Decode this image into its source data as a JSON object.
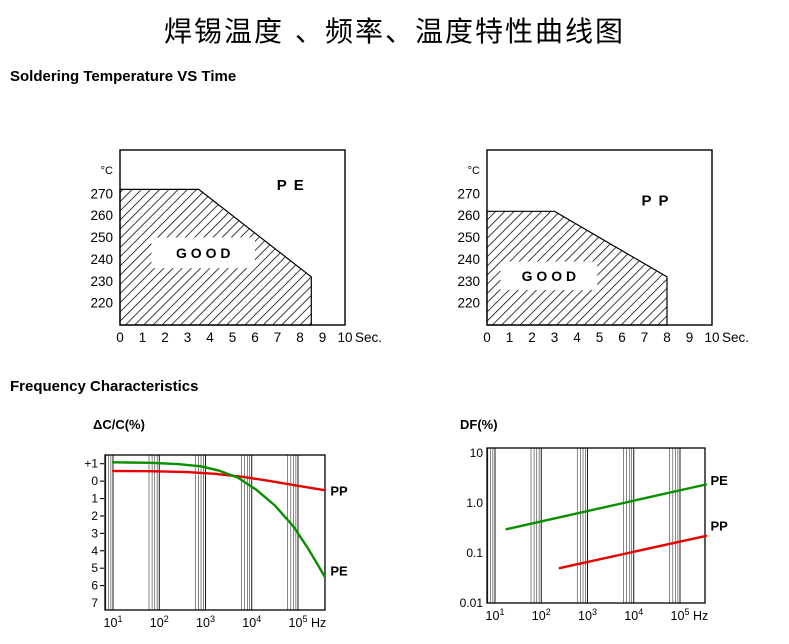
{
  "page": {
    "title": "焊锡温度 、频率、温度特性曲线图",
    "sections": {
      "soldering": "Soldering Temperature VS Time",
      "frequency": "Frequency Characteristics"
    }
  },
  "colors": {
    "pe_green": "#089000",
    "pp_red": "#e60000",
    "axis_black": "#000000"
  },
  "chart_data": [
    {
      "id": "chart-solder-pe",
      "type": "area",
      "series_label": "P E",
      "good_label": "G O O D",
      "y_unit": "°C",
      "x_unit": "Sec.",
      "x_ticks": [
        0,
        1,
        2,
        3,
        4,
        5,
        6,
        7,
        8,
        9,
        10
      ],
      "y_ticks": [
        270,
        260,
        250,
        240,
        230,
        220
      ],
      "x_range": [
        0,
        10
      ],
      "y_range": [
        210,
        290
      ],
      "region_points": [
        [
          0,
          272
        ],
        [
          3.5,
          272
        ],
        [
          8.5,
          232
        ],
        [
          8.5,
          210
        ],
        [
          0,
          210
        ]
      ],
      "good_box": {
        "x0": 1.4,
        "x1": 6.0,
        "y0": 236,
        "y1": 250
      },
      "label_pos": [
        7.6,
        274
      ]
    },
    {
      "id": "chart-solder-pp",
      "type": "area",
      "series_label": "P P",
      "good_label": "G O O D",
      "y_unit": "°C",
      "x_unit": "Sec.",
      "x_ticks": [
        0,
        1,
        2,
        3,
        4,
        5,
        6,
        7,
        8,
        9,
        10
      ],
      "y_ticks": [
        270,
        260,
        250,
        240,
        230,
        220
      ],
      "x_range": [
        0,
        10
      ],
      "y_range": [
        210,
        290
      ],
      "region_points": [
        [
          0,
          262
        ],
        [
          3,
          262
        ],
        [
          8,
          232
        ],
        [
          8,
          210
        ],
        [
          0,
          210
        ]
      ],
      "good_box": {
        "x0": 0.6,
        "x1": 4.9,
        "y0": 226,
        "y1": 239
      },
      "label_pos": [
        7.5,
        267
      ]
    },
    {
      "id": "chart-freq-dcc",
      "type": "line",
      "title": "ΔC/C(%)",
      "x_scale": "log",
      "x_decades": [
        1,
        2,
        3,
        4,
        5
      ],
      "x_unit": "Hz",
      "y_scale": "linear",
      "y_range": [
        -7.4,
        1.5
      ],
      "y_ticks": [
        {
          "v": 1,
          "label": "+1",
          "dash": true
        },
        {
          "v": 0,
          "label": "0",
          "dash": true
        },
        {
          "v": -1,
          "label": "1",
          "dash": true
        },
        {
          "v": -2,
          "label": "2",
          "dash": true
        },
        {
          "v": -3,
          "label": "3",
          "dash": true
        },
        {
          "v": -4,
          "label": "4",
          "dash": true
        },
        {
          "v": -5,
          "label": "5",
          "dash": true
        },
        {
          "v": -6,
          "label": "6",
          "dash": true
        },
        {
          "v": -7,
          "label": "7",
          "dash": false
        }
      ],
      "series": [
        {
          "name": "PP",
          "color": "#e60000",
          "points": [
            [
              1,
              0.58
            ],
            [
              1.8,
              0.57
            ],
            [
              2.6,
              0.52
            ],
            [
              3.2,
              0.42
            ],
            [
              3.8,
              0.25
            ],
            [
              4.4,
              0.0
            ],
            [
              5.0,
              -0.27
            ],
            [
              5.58,
              -0.52
            ]
          ],
          "label_pos": [
            5.7,
            -0.6
          ]
        },
        {
          "name": "PE",
          "color": "#089000",
          "points": [
            [
              1,
              1.08
            ],
            [
              1.8,
              1.05
            ],
            [
              2.4,
              0.98
            ],
            [
              2.9,
              0.85
            ],
            [
              3.3,
              0.6
            ],
            [
              3.7,
              0.2
            ],
            [
              4.1,
              -0.5
            ],
            [
              4.5,
              -1.4
            ],
            [
              4.9,
              -2.6
            ],
            [
              5.2,
              -3.8
            ],
            [
              5.45,
              -4.9
            ],
            [
              5.58,
              -5.5
            ]
          ],
          "label_pos": [
            5.7,
            -5.2
          ]
        }
      ]
    },
    {
      "id": "chart-freq-df",
      "type": "line",
      "title": "DF(%)",
      "x_scale": "log",
      "x_decades": [
        1,
        2,
        3,
        4,
        5
      ],
      "x_unit": "Hz",
      "y_scale": "log",
      "y_range": [
        0.01,
        12.6
      ],
      "y_ticks": [
        {
          "v": 10,
          "label": "10",
          "dash": false
        },
        {
          "v": 1,
          "label": "1.0",
          "dash": false
        },
        {
          "v": 0.1,
          "label": "0.1",
          "dash": false
        },
        {
          "v": 0.01,
          "label": "0.01",
          "dash": false
        }
      ],
      "series": [
        {
          "name": "PE",
          "color": "#089000",
          "points": [
            [
              1.25,
              0.3
            ],
            [
              5.56,
              2.35
            ]
          ],
          "label_pos": [
            5.66,
            2.75
          ]
        },
        {
          "name": "PP",
          "color": "#e60000",
          "points": [
            [
              2.4,
              0.05
            ],
            [
              5.56,
              0.22
            ]
          ],
          "label_pos": [
            5.66,
            0.34
          ]
        }
      ]
    }
  ]
}
